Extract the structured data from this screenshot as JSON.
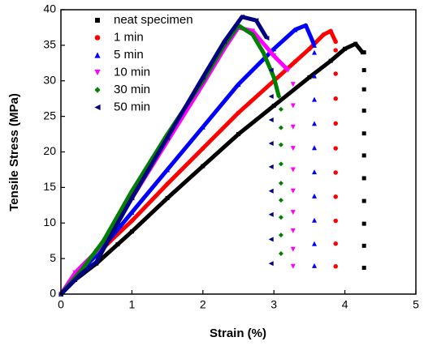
{
  "chart_data": {
    "type": "scatter",
    "x_label": "Strain (%)",
    "y_label": "Tensile Stress (MPa)",
    "xlim": [
      0,
      5
    ],
    "ylim": [
      0,
      40
    ],
    "xticks": [
      0,
      1,
      2,
      3,
      4,
      5
    ],
    "yticks": [
      0,
      5,
      10,
      15,
      20,
      25,
      30,
      35,
      40
    ],
    "legend": "upper left",
    "series": [
      {
        "name": "neat specimen",
        "color": "#000000",
        "marker": "square",
        "x": [
          0,
          0.2,
          0.5,
          0.8,
          1.0,
          1.5,
          2.0,
          2.5,
          3.0,
          3.5,
          3.8,
          4.0,
          4.15,
          4.25
        ],
        "y": [
          0,
          2,
          4.3,
          7,
          8.8,
          13.5,
          18,
          22.5,
          26.5,
          30.5,
          32.8,
          34.5,
          35.2,
          34
        ],
        "drop": {
          "x": 4.27,
          "y": [
            34,
            31.5,
            28.8,
            25.8,
            22.6,
            19.5,
            16.3,
            13.1,
            9.9,
            6.8,
            3.7
          ]
        }
      },
      {
        "name": "1 min",
        "color": "#ff0000",
        "marker": "circle",
        "x": [
          0,
          0.2,
          0.4,
          0.7,
          1.0,
          1.5,
          2.0,
          2.5,
          3.0,
          3.3,
          3.5,
          3.7,
          3.8,
          3.87
        ],
        "y": [
          0,
          2.5,
          4.5,
          7.5,
          10.3,
          15.5,
          20.5,
          25.5,
          30,
          32.7,
          34.5,
          36.5,
          37,
          35.5
        ],
        "drop": {
          "x": 3.87,
          "y": [
            34.3,
            31,
            27.5,
            24,
            20.5,
            17.1,
            13.7,
            10.3,
            7.1,
            3.9
          ]
        }
      },
      {
        "name": "5 min",
        "color": "#0000ff",
        "marker": "triangle-up",
        "x": [
          0,
          0.2,
          0.5,
          1.0,
          1.5,
          2.0,
          2.5,
          3.0,
          3.3,
          3.45,
          3.57
        ],
        "y": [
          0,
          2.5,
          5.5,
          11.5,
          17.5,
          23.5,
          29.5,
          34.5,
          37.2,
          37.8,
          35
        ],
        "drop": {
          "x": 3.57,
          "y": [
            34,
            30.7,
            27.4,
            24,
            20.6,
            17.2,
            13.8,
            10.4,
            7.1,
            4
          ]
        }
      },
      {
        "name": "10 min",
        "color": "#ff00ff",
        "marker": "triangle-down",
        "x": [
          0,
          0.2,
          0.5,
          1.0,
          1.5,
          2.0,
          2.3,
          2.5,
          2.7,
          3.0,
          3.2
        ],
        "y": [
          0,
          3,
          6,
          13.5,
          21.5,
          29.5,
          34.5,
          37.5,
          37,
          33.5,
          31.5
        ],
        "drop": {
          "x": 3.27,
          "y": [
            29.5,
            26.5,
            23.5,
            20.5,
            17.5,
            14.5,
            11.5,
            8.9,
            6.3,
            3.9
          ]
        }
      },
      {
        "name": "30 min",
        "color": "#008000",
        "marker": "diamond",
        "x": [
          0,
          0.3,
          0.6,
          1.0,
          1.5,
          2.0,
          2.3,
          2.5,
          2.7,
          2.85,
          3.0,
          3.07
        ],
        "y": [
          0,
          3.5,
          7.5,
          14.5,
          22.5,
          30,
          35,
          37.8,
          36.5,
          34,
          30.5,
          27.8
        ],
        "drop": {
          "x": 3.1,
          "y": [
            26,
            23.4,
            21,
            18.3,
            15.6,
            13.2,
            10.8,
            8.3,
            5.7
          ]
        }
      },
      {
        "name": "50 min",
        "color": "#000080",
        "marker": "triangle-left",
        "x": [
          0,
          0.3,
          0.5,
          0.8,
          1.0,
          1.5,
          2.0,
          2.3,
          2.55,
          2.75,
          2.9
        ],
        "y": [
          0,
          3,
          4.5,
          10,
          13.5,
          22,
          30.5,
          35.5,
          39,
          38.5,
          36
        ],
        "drop": {
          "x": 2.96,
          "y": [
            31.5,
            27.8,
            24.5,
            21.2,
            17.9,
            14.5,
            11.2,
            7.7,
            4.3
          ]
        }
      }
    ]
  }
}
